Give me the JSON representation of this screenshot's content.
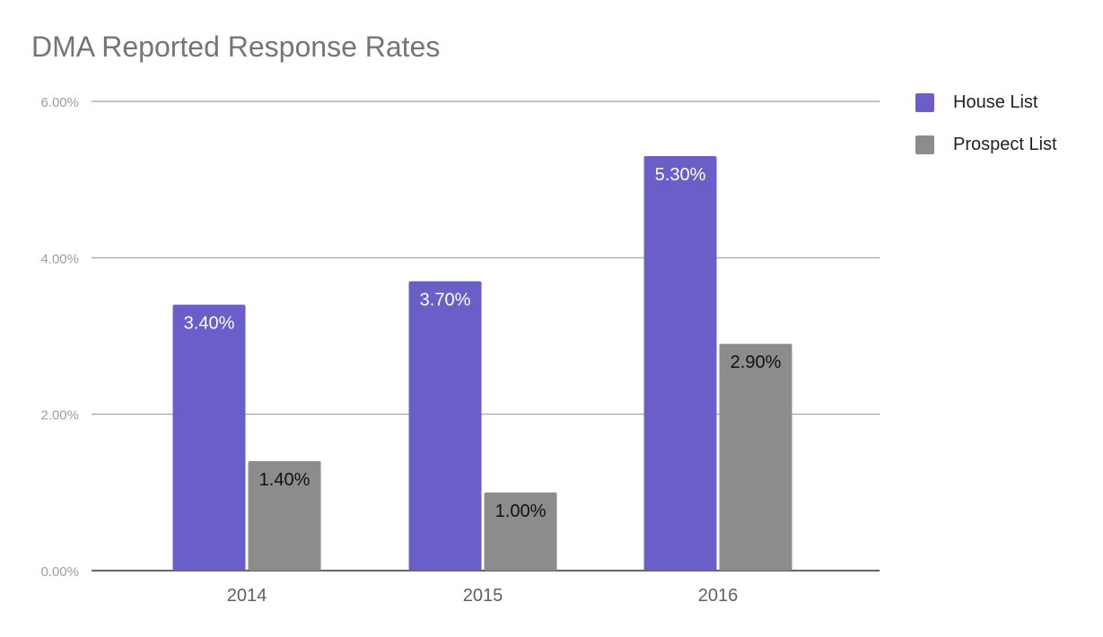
{
  "chart_data": {
    "type": "bar",
    "title": "DMA Reported Response Rates",
    "xlabel": "",
    "ylabel": "",
    "categories": [
      "2014",
      "2015",
      "2016"
    ],
    "series": [
      {
        "name": "House List",
        "color": "#6a5fc8",
        "values": [
          3.4,
          3.7,
          5.3
        ],
        "data_labels": [
          "3.40%",
          "3.70%",
          "5.30%"
        ]
      },
      {
        "name": "Prospect List",
        "color": "#8c8c8c",
        "values": [
          1.4,
          1.0,
          2.9
        ],
        "data_labels": [
          "1.40%",
          "1.00%",
          "2.90%"
        ]
      }
    ],
    "ylim": [
      0,
      6
    ],
    "yticks": [
      0,
      2,
      4,
      6
    ],
    "ytick_labels": [
      "0.00%",
      "2.00%",
      "4.00%",
      "6.00%"
    ],
    "grid": true,
    "legend_position": "top-right"
  }
}
